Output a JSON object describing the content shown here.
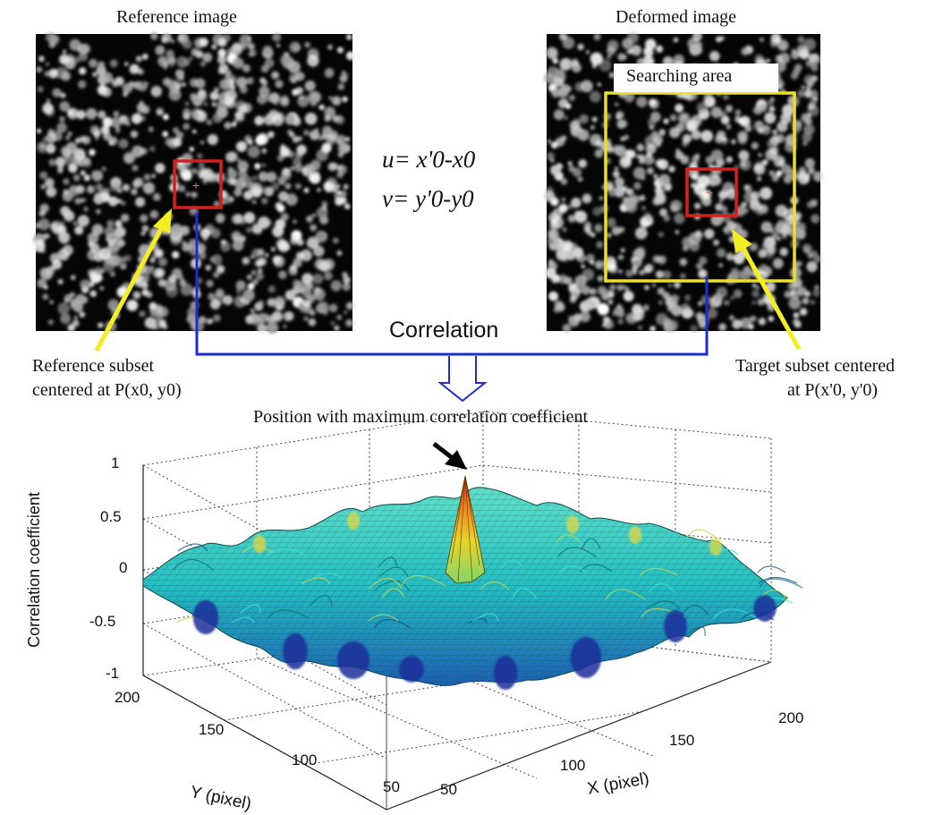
{
  "reference": {
    "title": "Reference image",
    "subset_label_line1": "Reference subset",
    "subset_label_line2": "centered at P(x0, y0)"
  },
  "deformed": {
    "title": "Deformed image",
    "search_label": "Searching area",
    "subset_label_line1": "Target subset centered",
    "subset_label_line2": "at P(x'0, y'0)"
  },
  "equations": {
    "u": "u= x'0-x0",
    "v": "v= y'0-y0"
  },
  "correlation_label": "Correlation",
  "peak_annotation": "Position with maximum correlation coefficient",
  "colors": {
    "subset_box": "#d42020",
    "search_box": "#e8e02a",
    "connector": "#1f2bd6",
    "pointer": "#f2ee22",
    "surface_main": "#2ac9c4",
    "surface_low": "#1f3fa8",
    "surface_peak": "#e8d22a"
  },
  "chart_data": {
    "type": "surface",
    "zlabel": "Correlation coefficient",
    "xlabel": "X (pixel)",
    "ylabel": "Y (pixel)",
    "zlim": [
      -1,
      1
    ],
    "xlim": [
      50,
      200
    ],
    "ylim": [
      50,
      200
    ],
    "z_ticks": [
      "1",
      "0.5",
      "0",
      "-0.5",
      "-1"
    ],
    "x_ticks": [
      "50",
      "100",
      "150",
      "200"
    ],
    "y_ticks": [
      "200",
      "150",
      "100",
      "50"
    ],
    "peak": {
      "x": 125,
      "y": 125,
      "z": 1
    },
    "grid": true
  }
}
